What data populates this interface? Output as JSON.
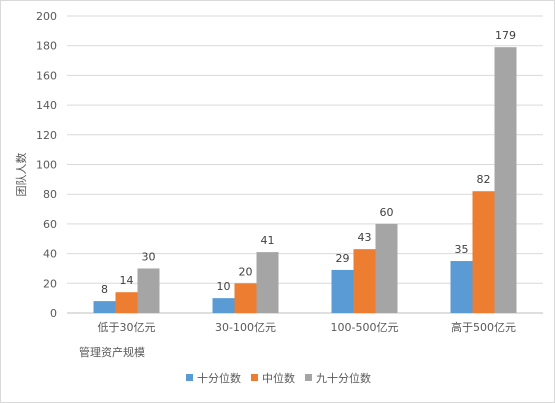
{
  "chart_data": {
    "type": "bar",
    "title": "",
    "xlabel": "管理资产规模",
    "ylabel": "团队人数",
    "ylim": [
      0,
      200
    ],
    "yticks": [
      0,
      20,
      40,
      60,
      80,
      100,
      120,
      140,
      160,
      180,
      200
    ],
    "grid": true,
    "legend_position": "bottom",
    "categories": [
      "低于30亿元",
      "30-100亿元",
      "100-500亿元",
      "高于500亿元"
    ],
    "series": [
      {
        "name": "十分位数",
        "color": "#5b9bd5",
        "values": [
          8,
          10,
          29,
          35
        ]
      },
      {
        "name": "中位数",
        "color": "#ed7d31",
        "values": [
          14,
          20,
          43,
          82
        ]
      },
      {
        "name": "九十分位数",
        "color": "#a5a5a5",
        "values": [
          30,
          41,
          60,
          179
        ]
      }
    ]
  }
}
